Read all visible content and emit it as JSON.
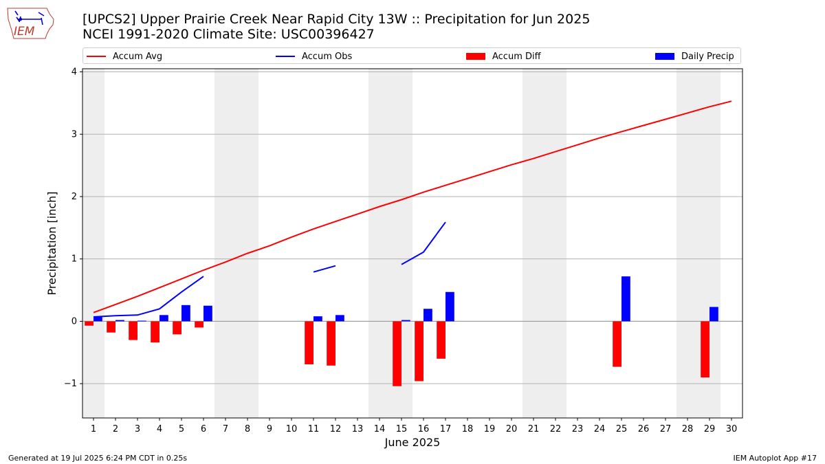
{
  "header": {
    "title_line1": "[UPCS2] Upper Prairie Creek Near Rapid City 13W :: Precipitation for Jun 2025",
    "title_line2": "NCEI 1991-2020 Climate Site: USC00396427",
    "logo_text": "IEM"
  },
  "legend": {
    "items": [
      {
        "label": "Accum Avg",
        "kind": "line",
        "color": "#ff0000"
      },
      {
        "label": "Accum Obs",
        "kind": "line",
        "color": "#0000ff"
      },
      {
        "label": "Accum Diff",
        "kind": "bar",
        "color": "#ff0000"
      },
      {
        "label": "Daily Precip",
        "kind": "bar",
        "color": "#0000ff"
      }
    ]
  },
  "footer": {
    "generated": "Generated at 19 Jul 2025 6:24 PM CDT in 0.25s",
    "app": "IEM Autoplot App #17"
  },
  "chart_data": {
    "type": "bar",
    "xlabel": "June 2025",
    "ylabel": "Precipitation [inch]",
    "x": [
      1,
      2,
      3,
      4,
      5,
      6,
      7,
      8,
      9,
      10,
      11,
      12,
      13,
      14,
      15,
      16,
      17,
      18,
      19,
      20,
      21,
      22,
      23,
      24,
      25,
      26,
      27,
      28,
      29,
      30
    ],
    "xlim": [
      0.5,
      30.5
    ],
    "ylim": [
      -1.55,
      4.05
    ],
    "yticks": [
      -1,
      0,
      1,
      2,
      3,
      4
    ],
    "ytick_labels": [
      "−1",
      "0",
      "1",
      "2",
      "3",
      "4"
    ],
    "grid": "horizontal",
    "weekend_bands": [
      [
        0.5,
        1.5
      ],
      [
        6.5,
        8.5
      ],
      [
        13.5,
        15.5
      ],
      [
        20.5,
        22.5
      ],
      [
        27.5,
        29.5
      ]
    ],
    "weekend_color": "#eeeeee",
    "series": [
      {
        "name": "Accum Avg",
        "type": "line",
        "color": "#ff0000",
        "values": [
          0.14,
          0.27,
          0.4,
          0.54,
          0.68,
          0.82,
          0.95,
          1.09,
          1.21,
          1.35,
          1.48,
          1.6,
          1.72,
          1.84,
          1.95,
          2.07,
          2.18,
          2.29,
          2.4,
          2.51,
          2.61,
          2.72,
          2.83,
          2.94,
          3.04,
          3.14,
          3.24,
          3.34,
          3.44,
          3.53
        ]
      },
      {
        "name": "Accum Obs",
        "type": "line",
        "color": "#0000ff",
        "values": [
          0.07,
          0.09,
          0.1,
          0.2,
          0.47,
          0.72,
          null,
          null,
          null,
          null,
          0.79,
          0.89,
          null,
          null,
          0.91,
          1.11,
          1.59,
          null,
          null,
          null,
          null,
          null,
          null,
          null,
          null,
          null,
          null,
          null,
          null,
          null
        ]
      },
      {
        "name": "Accum Diff",
        "type": "bar",
        "color": "#ff0000",
        "values": [
          -0.07,
          -0.18,
          -0.3,
          -0.34,
          -0.21,
          -0.1,
          null,
          null,
          null,
          null,
          -0.69,
          -0.71,
          null,
          null,
          -1.04,
          -0.96,
          -0.6,
          null,
          null,
          null,
          null,
          null,
          null,
          null,
          -0.73,
          null,
          null,
          null,
          -0.9,
          null
        ]
      },
      {
        "name": "Daily Precip",
        "type": "bar",
        "color": "#0000ff",
        "values": [
          0.07,
          0.02,
          0.01,
          0.1,
          0.26,
          0.25,
          null,
          null,
          null,
          null,
          0.08,
          0.1,
          null,
          null,
          0.02,
          0.2,
          0.47,
          null,
          null,
          null,
          null,
          null,
          null,
          null,
          0.72,
          null,
          null,
          null,
          0.23,
          null
        ]
      }
    ]
  }
}
